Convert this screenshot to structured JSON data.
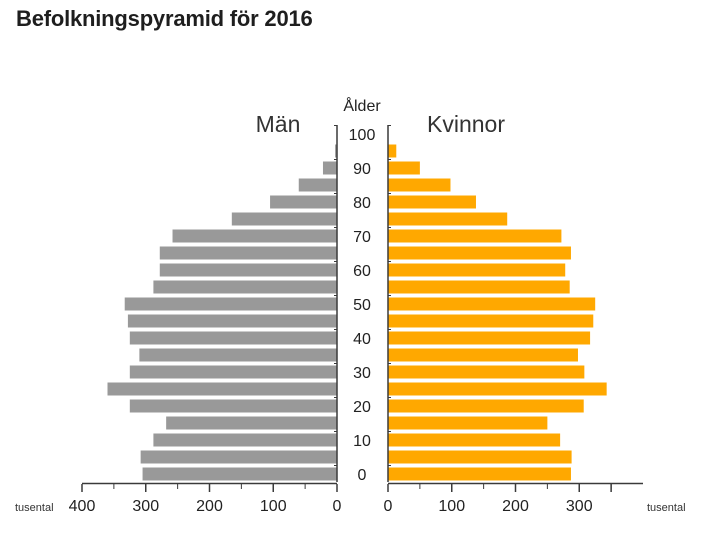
{
  "title": "Befolkningspyramid för 2016",
  "chart_data": {
    "type": "bar",
    "title": "Befolkningspyramid för 2016",
    "center_axis_label": "Ålder",
    "unit_label_left": "tusental",
    "unit_label_right": "tusental",
    "age_ticks": [
      "100",
      "90",
      "80",
      "70",
      "60",
      "50",
      "40",
      "30",
      "20",
      "10",
      "0"
    ],
    "categories": [
      "0",
      "5",
      "10",
      "15",
      "20",
      "25",
      "30",
      "35",
      "40",
      "45",
      "50",
      "55",
      "60",
      "65",
      "70",
      "75",
      "80",
      "85",
      "90",
      "95",
      "100"
    ],
    "series": [
      {
        "name": "Män",
        "color": "#999999",
        "side": "left",
        "values": [
          305,
          308,
          288,
          268,
          325,
          360,
          325,
          310,
          325,
          328,
          333,
          288,
          278,
          278,
          258,
          165,
          105,
          60,
          22,
          3,
          0
        ]
      },
      {
        "name": "Kvinnor",
        "color": "#ffa800",
        "side": "right",
        "values": [
          287,
          288,
          270,
          250,
          307,
          343,
          308,
          298,
          317,
          322,
          325,
          285,
          278,
          287,
          272,
          187,
          138,
          98,
          50,
          13,
          0
        ]
      }
    ],
    "xlim": [
      0,
      400
    ],
    "x_ticks_left": [
      "400",
      "300",
      "200",
      "100",
      "0"
    ],
    "x_ticks_right": [
      "0",
      "100",
      "200",
      "300"
    ],
    "grid": false,
    "legend": "series names above bars"
  }
}
